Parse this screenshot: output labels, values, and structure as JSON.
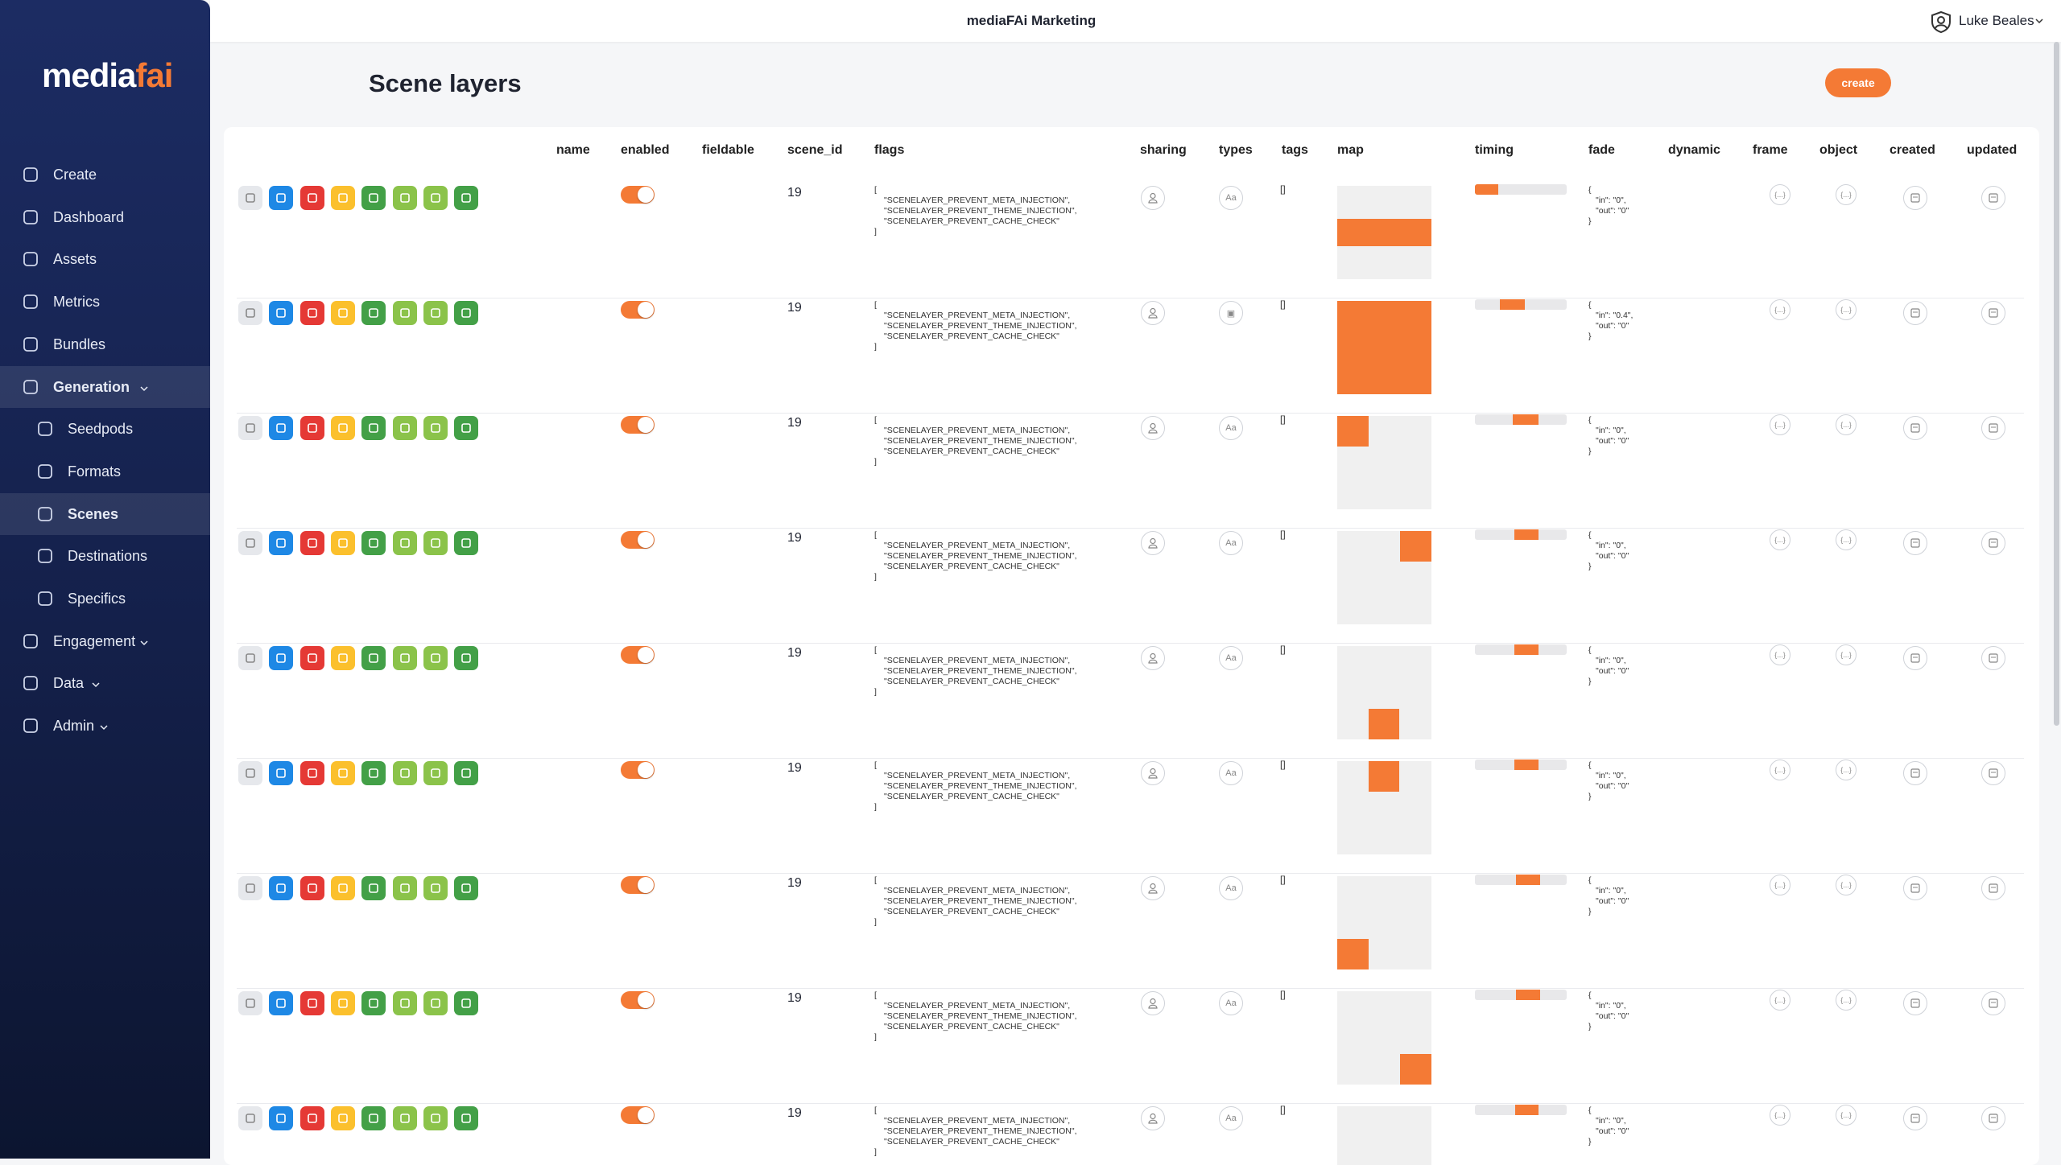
{
  "app": {
    "logo_main": "media",
    "logo_accent": "fai",
    "workspace": "mediaFAi Marketing",
    "user": "Luke Beales"
  },
  "nav": [
    {
      "label": "Create",
      "sub": false,
      "chevron": false
    },
    {
      "label": "Dashboard",
      "sub": false,
      "chevron": false
    },
    {
      "label": "Assets",
      "sub": false,
      "chevron": false
    },
    {
      "label": "Metrics",
      "sub": false,
      "chevron": false
    },
    {
      "label": "Bundles",
      "sub": false,
      "chevron": false
    },
    {
      "label": "Generation",
      "sub": false,
      "chevron": true,
      "active": true
    },
    {
      "label": "Seedpods",
      "sub": true,
      "chevron": false
    },
    {
      "label": "Formats",
      "sub": true,
      "chevron": false
    },
    {
      "label": "Scenes",
      "sub": true,
      "chevron": false,
      "active": true
    },
    {
      "label": "Destinations",
      "sub": true,
      "chevron": false
    },
    {
      "label": "Specifics",
      "sub": true,
      "chevron": false
    },
    {
      "label": "Engagement",
      "sub": false,
      "chevron": true
    },
    {
      "label": "Data",
      "sub": false,
      "chevron": true
    },
    {
      "label": "Admin",
      "sub": false,
      "chevron": true
    }
  ],
  "page": {
    "title": "Scene layers",
    "create_button": "create"
  },
  "table": {
    "columns": [
      "name",
      "enabled",
      "fieldable",
      "scene_id",
      "flags",
      "sharing",
      "types",
      "tags",
      "map",
      "timing",
      "fade",
      "dynamic",
      "frame",
      "object",
      "created",
      "updated"
    ],
    "rows": [
      {
        "scene_id": 19,
        "flags": [
          "[",
          "\"SCENELAYER_PREVENT_META_INJECTION\",",
          "\"SCENELAYER_PREVENT_THEME_INJECTION\",",
          "\"SCENELAYER_PREVENT_CACHE_CHECK\"",
          "]"
        ],
        "types": "Aa",
        "tags": "[]",
        "fade": [
          "{",
          "\"in\": \"0\",",
          "\"out\": \"0\"",
          "}"
        ],
        "frame": "{...}",
        "object": "{...}"
      },
      {
        "scene_id": 19,
        "flags": [
          "[",
          "\"SCENELAYER_PREVENT_META_INJECTION\",",
          "\"SCENELAYER_PREVENT_THEME_INJECTION\",",
          "\"SCENELAYER_PREVENT_CACHE_CHECK\"",
          "]"
        ],
        "types": "▣",
        "tags": "[]",
        "fade": [
          "{",
          "\"in\": \"0.4\",",
          "\"out\": \"0\"",
          "}"
        ],
        "frame": "{...}",
        "object": "{...}"
      },
      {
        "scene_id": 19,
        "flags": [
          "[",
          "\"SCENELAYER_PREVENT_META_INJECTION\",",
          "\"SCENELAYER_PREVENT_THEME_INJECTION\",",
          "\"SCENELAYER_PREVENT_CACHE_CHECK\"",
          "]"
        ],
        "types": "Aa",
        "tags": "[]",
        "fade": [
          "{",
          "\"in\": \"0\",",
          "\"out\": \"0\"",
          "}"
        ],
        "frame": "{...}",
        "object": "{...}"
      },
      {
        "scene_id": 19,
        "flags": [
          "[",
          "\"SCENELAYER_PREVENT_META_INJECTION\",",
          "\"SCENELAYER_PREVENT_THEME_INJECTION\",",
          "\"SCENELAYER_PREVENT_CACHE_CHECK\"",
          "]"
        ],
        "types": "Aa",
        "tags": "[]",
        "fade": [
          "{",
          "\"in\": \"0\",",
          "\"out\": \"0\"",
          "}"
        ],
        "frame": "{...}",
        "object": "{...}"
      },
      {
        "scene_id": 19,
        "flags": [
          "[",
          "\"SCENELAYER_PREVENT_META_INJECTION\",",
          "\"SCENELAYER_PREVENT_THEME_INJECTION\",",
          "\"SCENELAYER_PREVENT_CACHE_CHECK\"",
          "]"
        ],
        "types": "Aa",
        "tags": "[]",
        "fade": [
          "{",
          "\"in\": \"0\",",
          "\"out\": \"0\"",
          "}"
        ],
        "frame": "{...}",
        "object": "{...}"
      },
      {
        "scene_id": 19,
        "flags": [
          "[",
          "\"SCENELAYER_PREVENT_META_INJECTION\",",
          "\"SCENELAYER_PREVENT_THEME_INJECTION\",",
          "\"SCENELAYER_PREVENT_CACHE_CHECK\"",
          "]"
        ],
        "types": "Aa",
        "tags": "[]",
        "fade": [
          "{",
          "\"in\": \"0\",",
          "\"out\": \"0\"",
          "}"
        ],
        "frame": "{...}",
        "object": "{...}"
      },
      {
        "scene_id": 19,
        "flags": [
          "[",
          "\"SCENELAYER_PREVENT_META_INJECTION\",",
          "\"SCENELAYER_PREVENT_THEME_INJECTION\",",
          "\"SCENELAYER_PREVENT_CACHE_CHECK\"",
          "]"
        ],
        "types": "Aa",
        "tags": "[]",
        "fade": [
          "{",
          "\"in\": \"0\",",
          "\"out\": \"0\"",
          "}"
        ],
        "frame": "{...}",
        "object": "{...}"
      },
      {
        "scene_id": 19,
        "flags": [
          "[",
          "\"SCENELAYER_PREVENT_META_INJECTION\",",
          "\"SCENELAYER_PREVENT_THEME_INJECTION\",",
          "\"SCENELAYER_PREVENT_CACHE_CHECK\"",
          "]"
        ],
        "types": "Aa",
        "tags": "[]",
        "fade": [
          "{",
          "\"in\": \"0\",",
          "\"out\": \"0\"",
          "}"
        ],
        "frame": "{...}",
        "object": "{...}"
      },
      {
        "scene_id": 19,
        "flags": [
          "[",
          "\"SCENELAYER_PREVENT_META_INJECTION\",",
          "\"SCENELAYER_PREVENT_THEME_INJECTION\",",
          "\"SCENELAYER_PREVENT_CACHE_CHECK\"",
          "]"
        ],
        "types": "Aa",
        "tags": "[]",
        "fade": [
          "{",
          "\"in\": \"0\",",
          "\"out\": \"0\"",
          "}"
        ],
        "frame": "{...}",
        "object": "{...}"
      }
    ]
  }
}
